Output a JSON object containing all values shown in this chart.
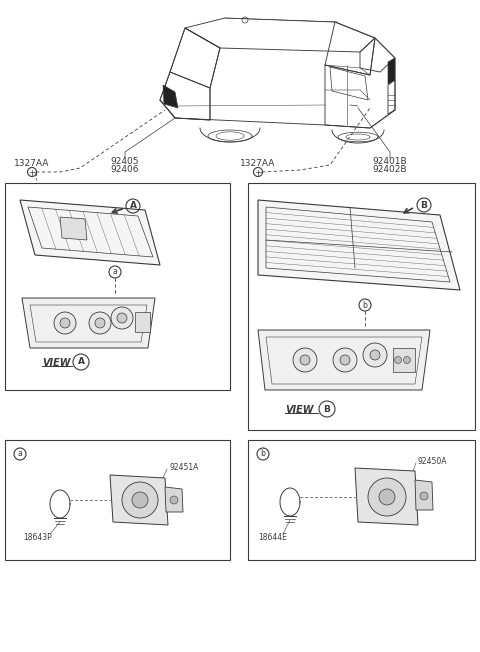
{
  "bg_color": "#ffffff",
  "line_color": "#3a3a3a",
  "labels": {
    "left_part1": "92405",
    "left_part2": "92406",
    "left_bolt": "1327AA",
    "right_part1": "92401B",
    "right_part2": "92402B",
    "right_bolt": "1327AA",
    "view_a": "VIEW",
    "view_b": "VIEW",
    "circle_a_cap": "A",
    "circle_b_cap": "B",
    "circle_a_view": "A",
    "circle_b_view": "B",
    "box_a_label": "a",
    "box_b_label": "b",
    "part_a1": "92451A",
    "part_a2": "18643P",
    "part_b1": "92450A",
    "part_b2": "18644E"
  },
  "fs": 6.5,
  "sfs": 5.5
}
